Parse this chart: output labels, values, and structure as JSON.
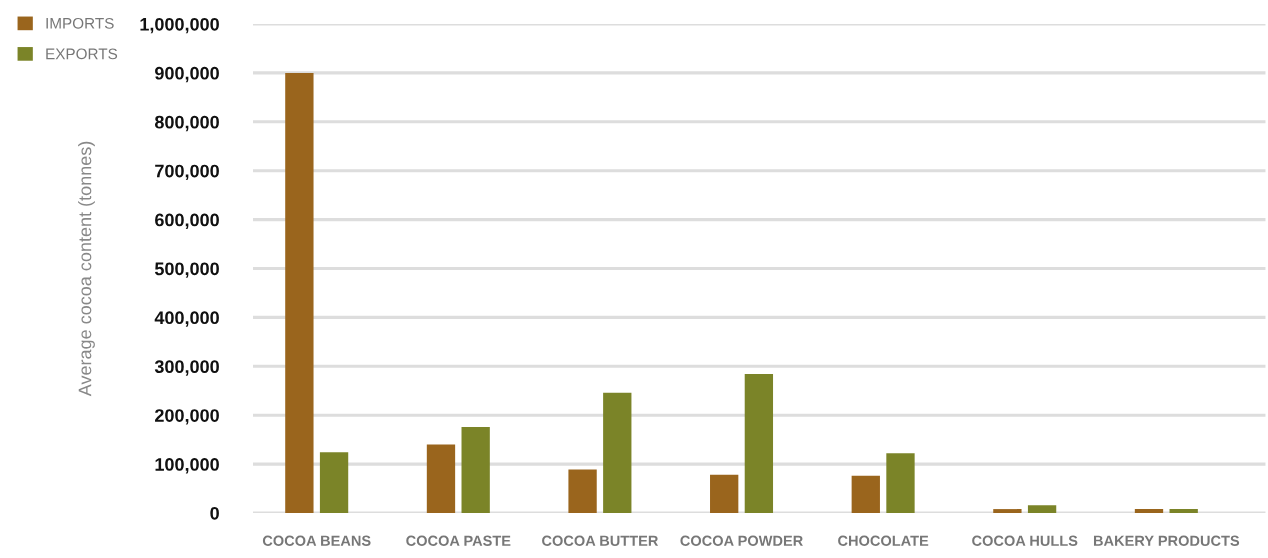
{
  "chart_data": {
    "type": "bar",
    "ylabel": "Average cocoa content (tonnes)",
    "categories": [
      "COCOA BEANS",
      "COCOA PASTE",
      "COCOA BUTTER",
      "COCOA POWDER",
      "CHOCOLATE",
      "COCOA HULLS",
      "BAKERY PRODUCTS"
    ],
    "series": [
      {
        "name": "IMPORTS",
        "color": "#9a651d",
        "values": [
          900000,
          140000,
          89000,
          78000,
          76000,
          8000,
          8000
        ]
      },
      {
        "name": "EXPORTS",
        "color": "#7b8428",
        "values": [
          124000,
          176000,
          246000,
          284000,
          122000,
          16000,
          8000
        ]
      }
    ],
    "ylim": [
      0,
      1000000
    ],
    "yticks": [
      {
        "value": 0,
        "label": "0"
      },
      {
        "value": 100000,
        "label": "100,000"
      },
      {
        "value": 200000,
        "label": "200,000"
      },
      {
        "value": 300000,
        "label": "300,000"
      },
      {
        "value": 400000,
        "label": "400,000"
      },
      {
        "value": 500000,
        "label": "500,000"
      },
      {
        "value": 600000,
        "label": "600,000"
      },
      {
        "value": 700000,
        "label": "700,000"
      },
      {
        "value": 800000,
        "label": "800,000"
      },
      {
        "value": 900000,
        "label": "900,000"
      },
      {
        "value": 1000000,
        "label": "1,000,000"
      }
    ],
    "grid": "y",
    "legend": "top left"
  }
}
